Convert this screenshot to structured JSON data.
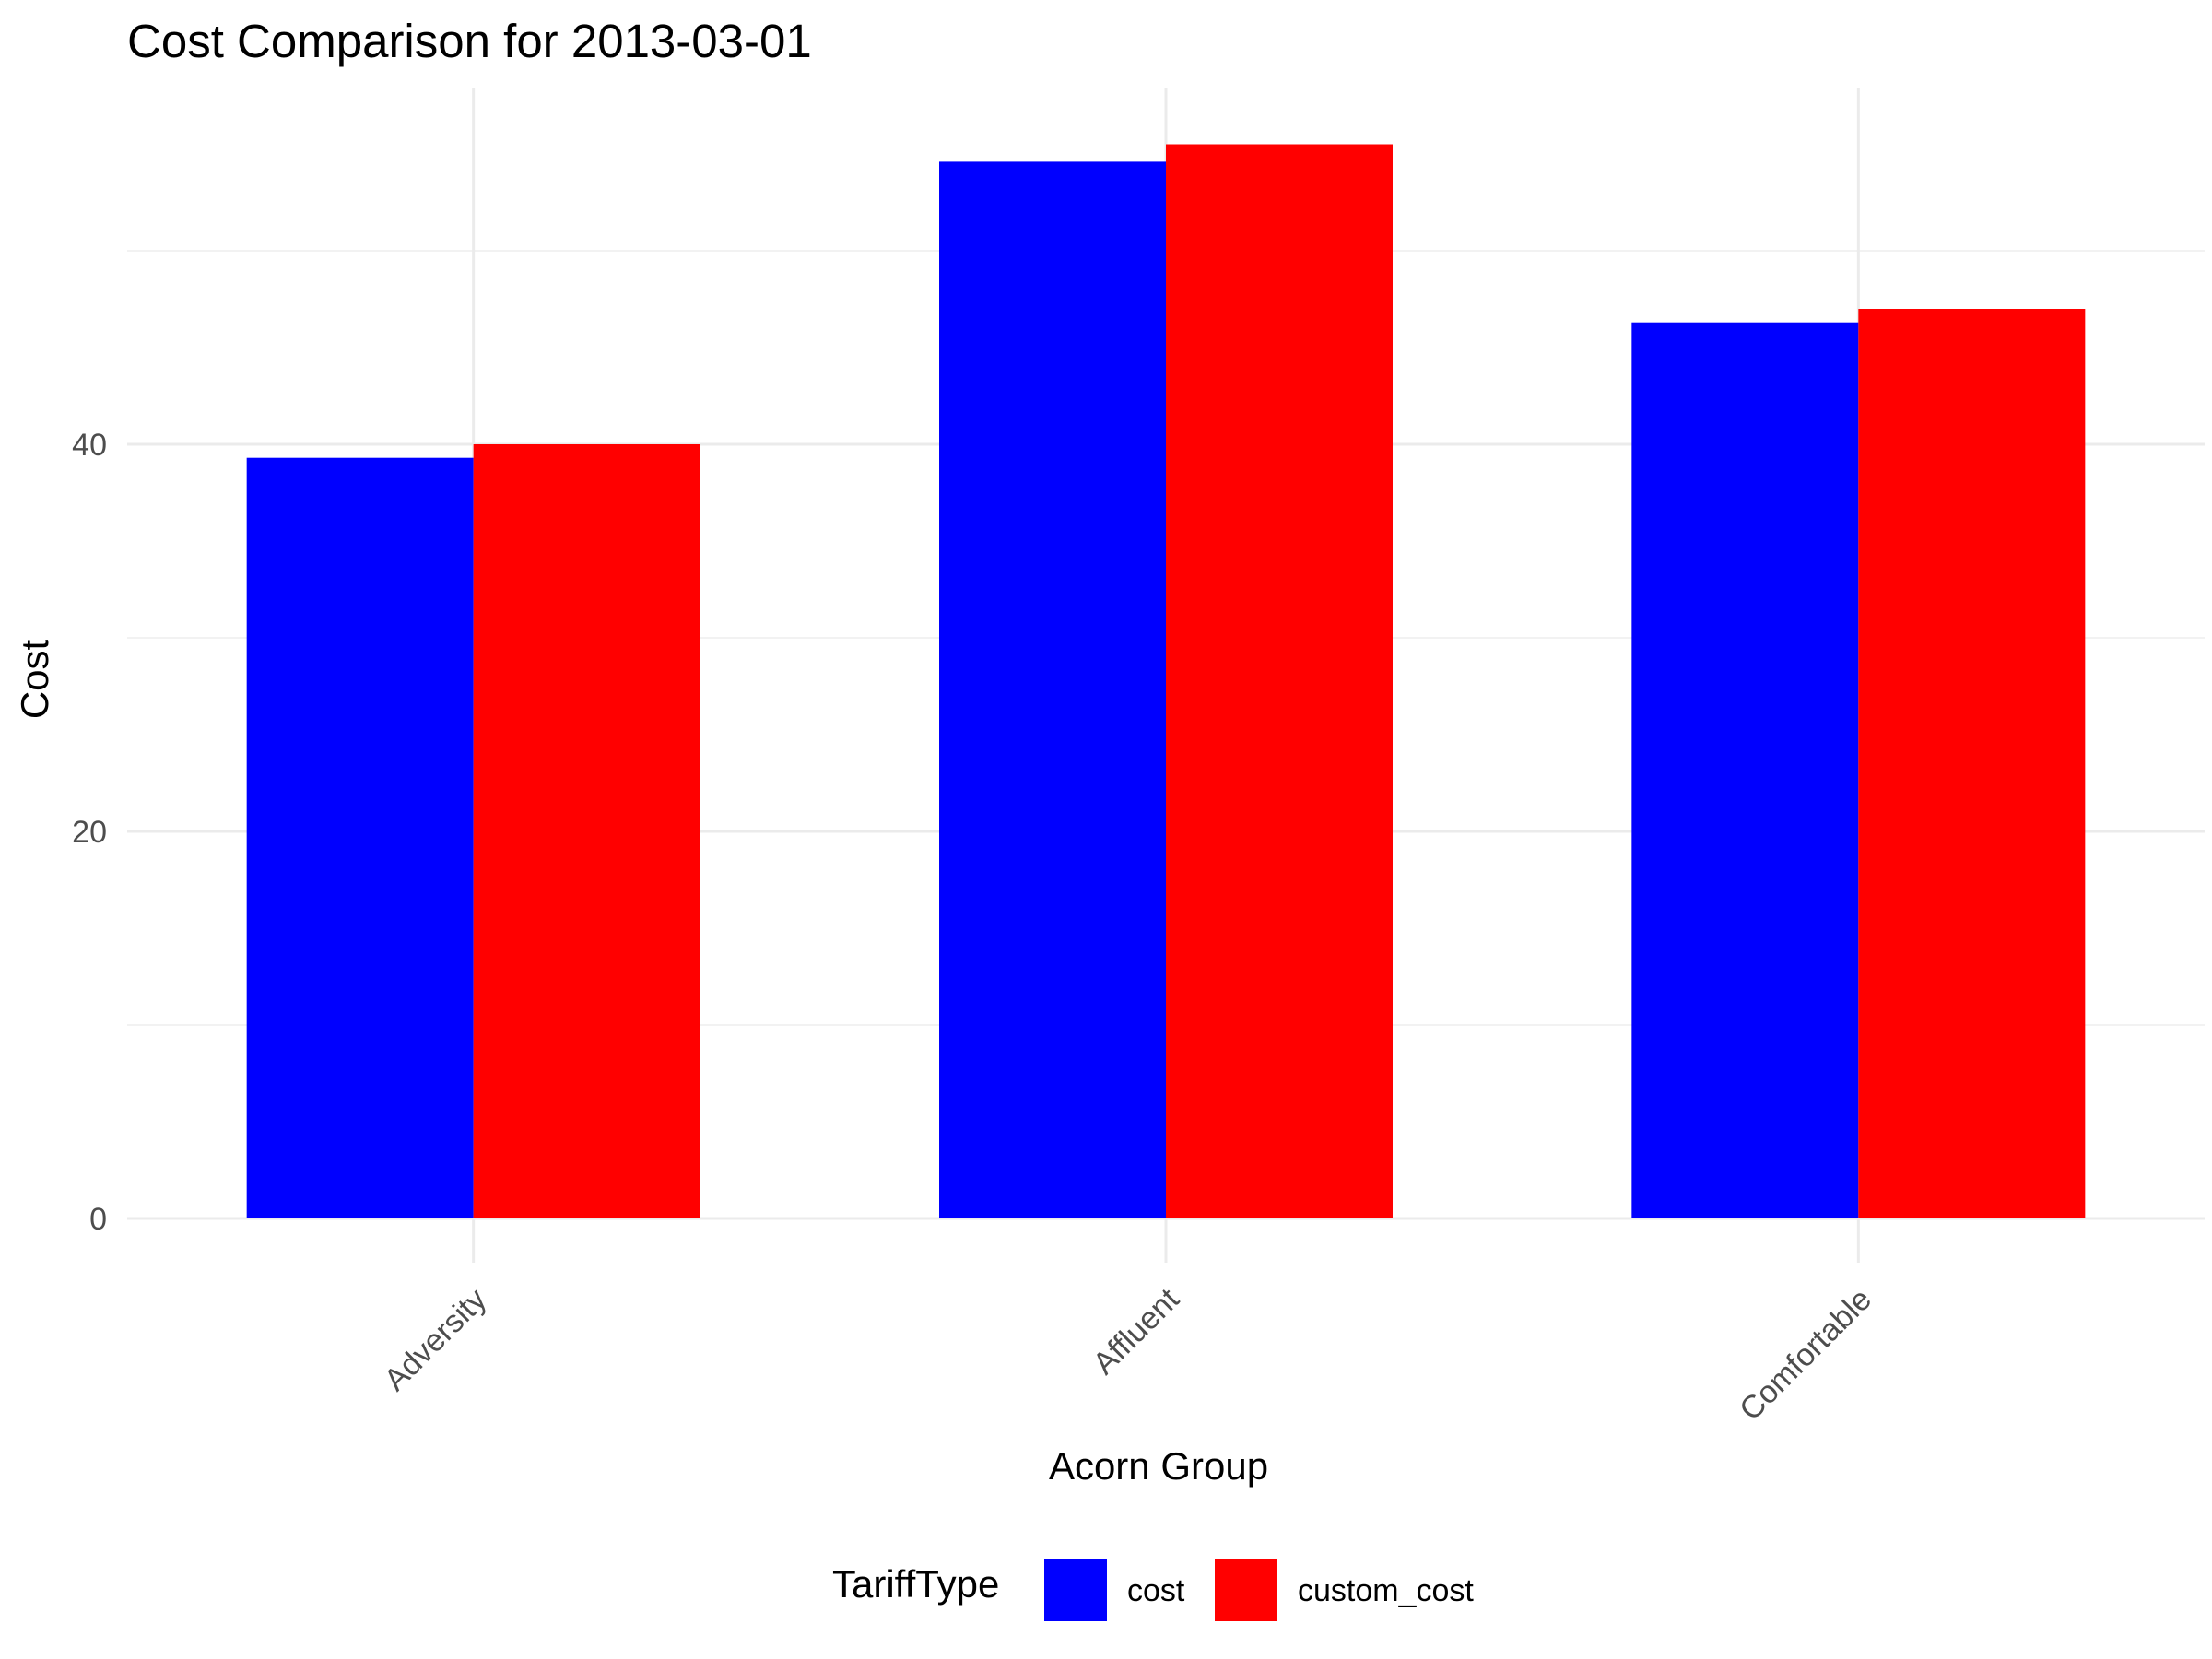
{
  "chart_data": {
    "type": "bar",
    "title": "Cost Comparison for 2013-03-01",
    "xlabel": "Acorn Group",
    "ylabel": "Cost",
    "categories": [
      "Adversity",
      "Affluent",
      "Comfortable"
    ],
    "series": [
      {
        "name": "cost",
        "color": "#0000ff",
        "values": [
          39.3,
          54.6,
          46.3
        ]
      },
      {
        "name": "custom_cost",
        "color": "#ff0000",
        "values": [
          40.0,
          55.5,
          47.0
        ]
      }
    ],
    "ylim": [
      0,
      58
    ],
    "yticks": [
      0,
      20,
      40
    ],
    "grid": true,
    "legend": {
      "title": "TariffType",
      "position": "bottom"
    }
  }
}
